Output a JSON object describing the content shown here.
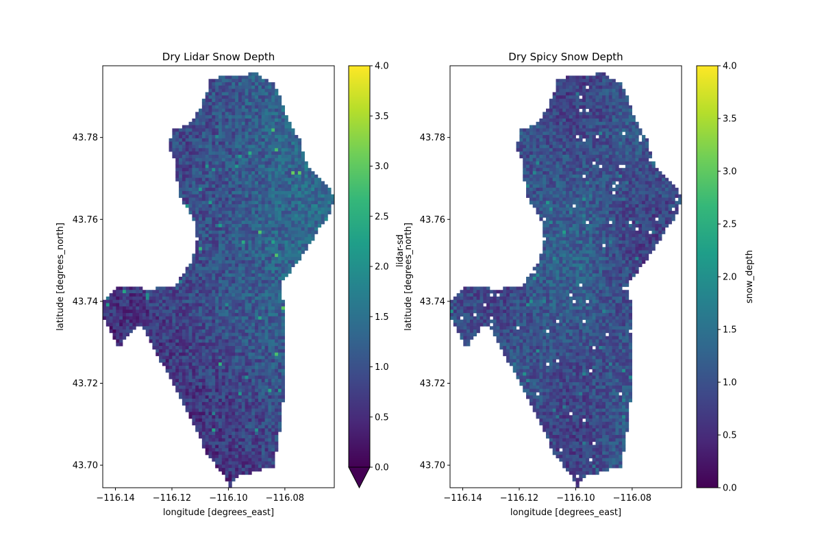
{
  "chart_data": [
    {
      "type": "heatmap",
      "title": "Dry Lidar Snow Depth",
      "xlabel": "longitude [degrees_east]",
      "ylabel": "latitude [degrees_north]",
      "xlim": [
        -116.1445,
        -116.0625
      ],
      "ylim": [
        43.6945,
        43.7975
      ],
      "xticks": [
        -116.14,
        -116.12,
        -116.1,
        -116.08
      ],
      "xtick_labels": [
        "−116.14",
        "−116.12",
        "−116.10",
        "−116.08"
      ],
      "yticks": [
        43.7,
        43.72,
        43.74,
        43.76,
        43.78
      ],
      "ytick_labels": [
        "43.70",
        "43.72",
        "43.74",
        "43.76",
        "43.78"
      ],
      "colorbar": {
        "label": "lidar-sd",
        "range": [
          0.0,
          4.0
        ],
        "ticks": [
          0.0,
          0.5,
          1.0,
          1.5,
          2.0,
          2.5,
          3.0,
          3.5,
          4.0
        ],
        "tick_labels": [
          "0.0",
          "0.5",
          "1.0",
          "1.5",
          "2.0",
          "2.5",
          "3.0",
          "3.5",
          "4.0"
        ],
        "extend": "min",
        "colormap": "viridis"
      },
      "grid": false,
      "value_range_observed": [
        0.0,
        3.2
      ],
      "typical_value": 0.9
    },
    {
      "type": "heatmap",
      "title": "Dry Spicy Snow Depth",
      "xlabel": "longitude [degrees_east]",
      "ylabel": "latitude [degrees_north]",
      "xlim": [
        -116.1445,
        -116.0625
      ],
      "ylim": [
        43.6945,
        43.7975
      ],
      "xticks": [
        -116.14,
        -116.12,
        -116.1,
        -116.08
      ],
      "xtick_labels": [
        "−116.14",
        "−116.12",
        "−116.10",
        "−116.08"
      ],
      "yticks": [
        43.7,
        43.72,
        43.74,
        43.76,
        43.78
      ],
      "ytick_labels": [
        "43.70",
        "43.72",
        "43.74",
        "43.76",
        "43.78"
      ],
      "colorbar": {
        "label": "snow_depth",
        "range": [
          0.0,
          4.0
        ],
        "ticks": [
          0.0,
          0.5,
          1.0,
          1.5,
          2.0,
          2.5,
          3.0,
          3.5,
          4.0
        ],
        "tick_labels": [
          "0.0",
          "0.5",
          "1.0",
          "1.5",
          "2.0",
          "2.5",
          "3.0",
          "3.5",
          "4.0"
        ],
        "extend": "neither",
        "colormap": "viridis"
      },
      "grid": false,
      "value_range_observed": [
        0.2,
        2.4
      ],
      "typical_value": 1.0
    }
  ],
  "colors": {
    "viridis": [
      "#440154",
      "#482878",
      "#3e4989",
      "#31688e",
      "#26828e",
      "#1f9e89",
      "#35b779",
      "#6ece58",
      "#b5de2b",
      "#fde725"
    ]
  }
}
